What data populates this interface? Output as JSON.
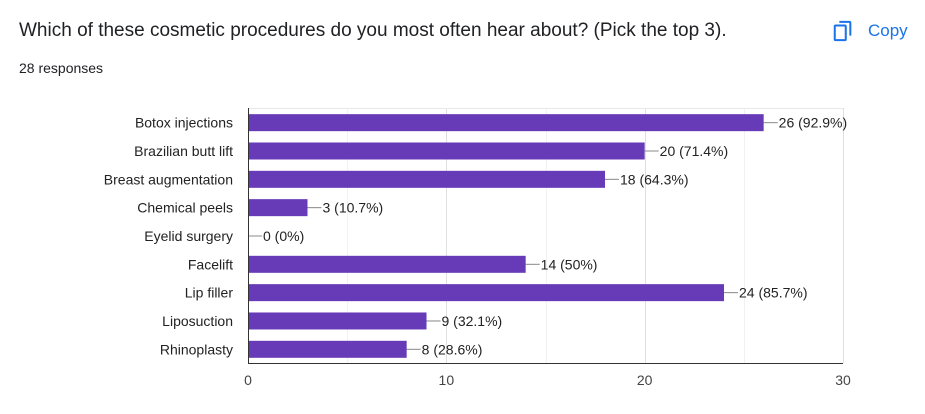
{
  "header": {
    "question": "Which of these cosmetic procedures do you most often hear about? (Pick the top 3).",
    "responses": "28 responses",
    "copy_label": "Copy"
  },
  "icons": {
    "copy": "copy-icon"
  },
  "colors": {
    "bar": "#673ab7",
    "accent": "#1a73e8"
  },
  "chart_data": {
    "type": "bar",
    "orientation": "horizontal",
    "categories": [
      "Botox injections",
      "Brazilian butt lift",
      "Breast augmentation",
      "Chemical peels",
      "Eyelid surgery",
      "Facelift",
      "Lip filler",
      "Liposuction",
      "Rhinoplasty"
    ],
    "values": [
      26,
      20,
      18,
      3,
      0,
      14,
      24,
      9,
      8
    ],
    "data_labels": [
      "26 (92.9%)",
      "20 (71.4%)",
      "18 (64.3%)",
      "3 (10.7%)",
      "0 (0%)",
      "14 (50%)",
      "24 (85.7%)",
      "9 (32.1%)",
      "8 (28.6%)"
    ],
    "xlim": [
      0,
      30
    ],
    "xticks": [
      0,
      10,
      20,
      30
    ],
    "grid": true
  }
}
